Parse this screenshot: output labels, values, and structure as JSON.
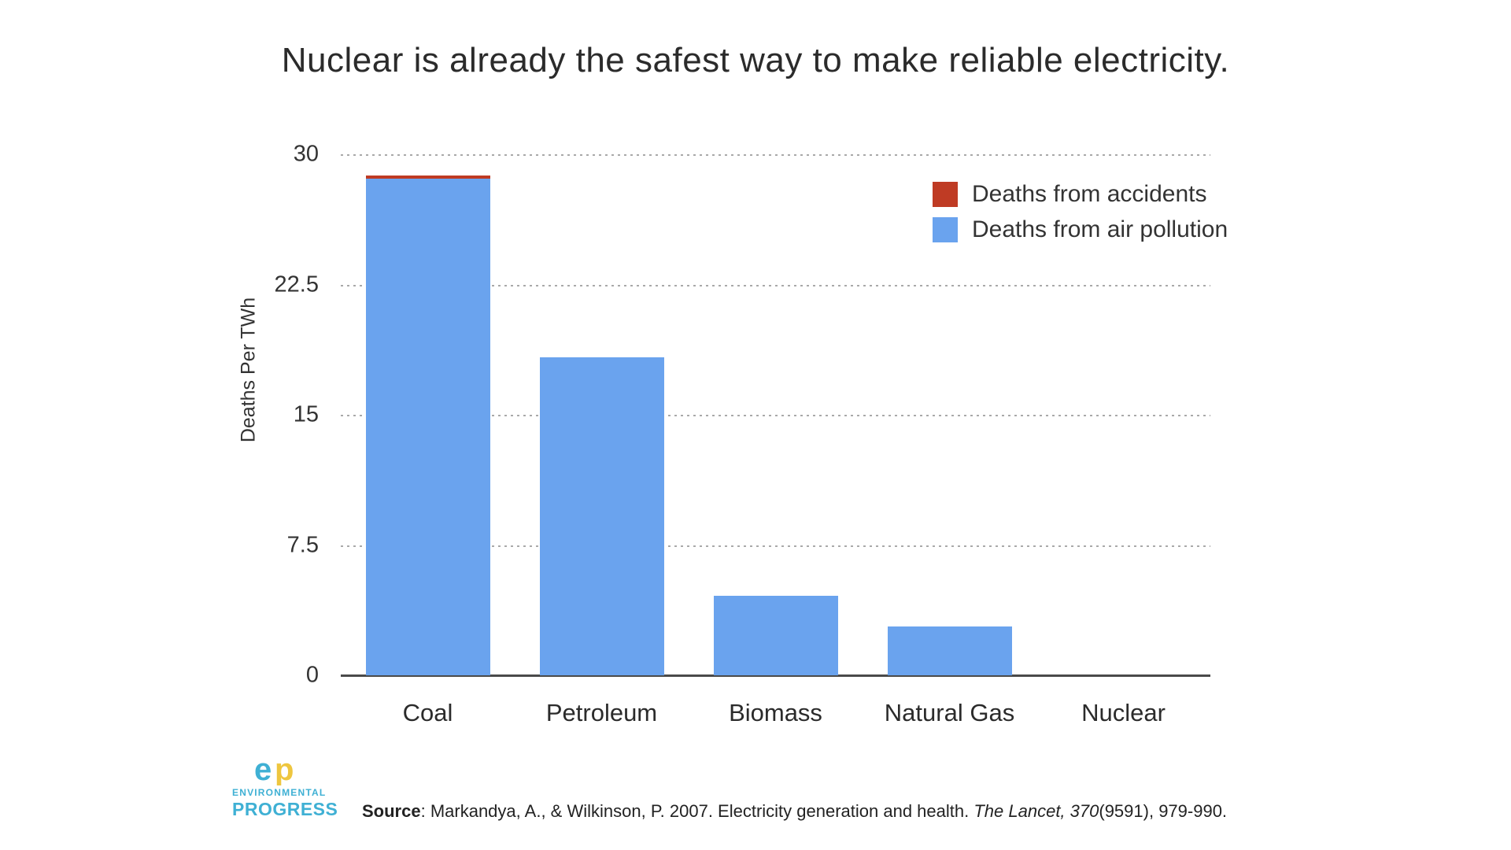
{
  "title": "Nuclear is already the safest way to make reliable electricity.",
  "chart_data": {
    "type": "bar",
    "stacked": true,
    "categories": [
      "Coal",
      "Petroleum",
      "Biomass",
      "Natural Gas",
      "Nuclear"
    ],
    "series": [
      {
        "key": "accidents",
        "name": "Deaths from accidents",
        "color": "#bf3b24",
        "values": [
          0.2,
          0,
          0,
          0,
          0
        ]
      },
      {
        "key": "air-pollution",
        "name": "Deaths from air pollution",
        "color": "#6aa3ee",
        "values": [
          28.6,
          18.3,
          4.6,
          2.8,
          0
        ]
      }
    ],
    "title": "Nuclear is already the safest way to make reliable electricity.",
    "xlabel": "",
    "ylabel": "Deaths Per TWh",
    "ylim": [
      0,
      30
    ],
    "yticks": [
      30,
      22.5,
      15,
      7.5,
      0
    ],
    "grid": "horizontal dotted",
    "legend_position": "top-right",
    "colors": {
      "gridline": "#a9a9a9",
      "axis_line": "#4a4a4a",
      "text": "#2b2b2b"
    }
  },
  "footer": {
    "source_label": "Source",
    "source_text": ": Markandya, A., & Wilkinson, P. 2007. Electricity generation and health. ",
    "source_italic": "The Lancet, 370",
    "source_suffix": "(9591), 979-990.",
    "logo": {
      "monogram_e": "e",
      "monogram_p": "p",
      "line1": "ENVIRONMENTAL",
      "line2": "PROGRESS",
      "blue": "#3fb0d4",
      "yellow": "#eec63f"
    }
  }
}
